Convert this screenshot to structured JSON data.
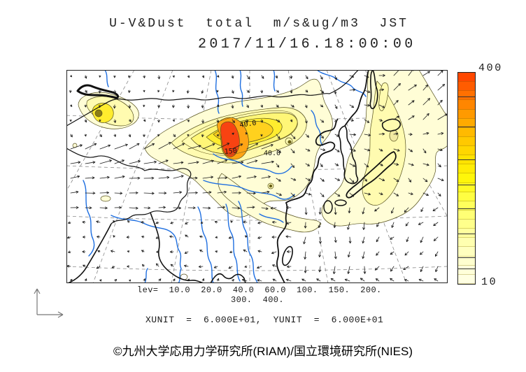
{
  "title": {
    "line1": "U-V&Dust  total  m/s&ug/m3  JST",
    "line2": "2017/11/16.18:00:00"
  },
  "colorbar": {
    "max_label": "400",
    "min_label": "10",
    "segments": 23,
    "stops": [
      [
        0,
        "#FFFFE6"
      ],
      [
        0.1,
        "#FFFFD2"
      ],
      [
        0.2,
        "#FFFFAE"
      ],
      [
        0.3,
        "#FFFF84"
      ],
      [
        0.4,
        "#FFFF4A"
      ],
      [
        0.5,
        "#FFF60A"
      ],
      [
        0.58,
        "#FFE400"
      ],
      [
        0.66,
        "#FFCE00"
      ],
      [
        0.74,
        "#FFB200"
      ],
      [
        0.82,
        "#FF9400"
      ],
      [
        0.9,
        "#FF6C00"
      ],
      [
        1,
        "#FF3E00"
      ]
    ],
    "tick_fracs_from_top": [
      0.113,
      0.255,
      0.41,
      0.53,
      0.642,
      0.762,
      0.874,
      0.927
    ]
  },
  "legend": {
    "levels_line1": "lev=  10.0  20.0  40.0  60.0  100.  150.  200.",
    "levels_line2": "300.  400.",
    "units_line": "XUNIT  =  6.000E+01,  YUNIT  =  6.000E+01"
  },
  "map": {
    "contour_labels": [
      {
        "text": "40.0"
      },
      {
        "text": "150"
      },
      {
        "text": "40.0"
      }
    ],
    "colors": {
      "frame": "#222222",
      "coast": "#111111",
      "river": "#1f6fe0",
      "graticule": "#8a8a8a",
      "dust_pale": "#FFFDD6",
      "dust_light": "#FFFBB0",
      "dust_mid": "#FFF677",
      "dust_yellow": "#FFEC2E",
      "dust_gold": "#FFD11E",
      "dust_orange": "#FFA414",
      "dust_red": "#F84312",
      "dust_dark_core": "#8A7C14"
    }
  },
  "footer": {
    "copyright": "©九州大学応用力学研究所(RIAM)/国立環境研究所(NIES)"
  },
  "chart_data": {
    "type": "contour-map",
    "variable": "Dust total",
    "wind_variable": "U-V",
    "units": "ug/m3",
    "wind_units": "m/s",
    "timezone": "JST",
    "valid_time": "2017/11/16 18:00:00",
    "contour_levels": [
      10,
      20,
      40,
      60,
      100,
      150,
      200,
      300,
      400
    ],
    "colorbar_range": [
      10,
      400
    ],
    "xunit": "6.000E+01",
    "yunit": "6.000E+01"
  }
}
